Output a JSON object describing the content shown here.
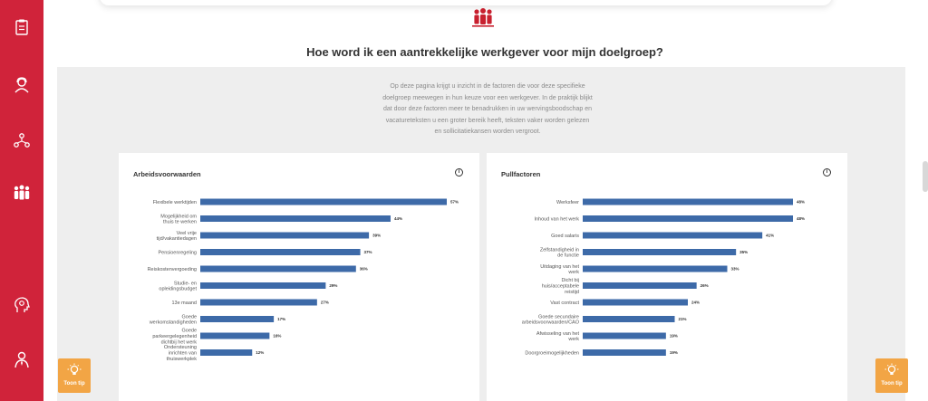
{
  "page": {
    "title": "Hoe word ik een aantrekkelijke werkgever voor mijn doelgroep?",
    "intro_lines": [
      "Op deze pagina krijgt u inzicht in de factoren die voor deze specifieke",
      "doelgroep meewegen in hun keuze voor een werkgever. In de praktijk blijkt",
      "dat door deze factoren meer te benadrukken in uw wervingsboodschap en",
      "vacatureteksten u een groter bereik heeft, teksten vaker worden gelezen",
      "en sollicitatiekansen worden vergroot."
    ]
  },
  "tip": {
    "label": "Toon tip"
  },
  "info_glyph": "i",
  "chart_data": [
    {
      "type": "bar",
      "orientation": "horizontal",
      "title": "Arbeidsvoorwaarden",
      "categories": [
        [
          "Flexibele werktijden"
        ],
        [
          "Mogelijkheid om",
          "thuis te werken"
        ],
        [
          "Veel vrije",
          "tijd/vakantiedagen"
        ],
        [
          "Pensioenregeling"
        ],
        [
          "Reiskostenvergoeding"
        ],
        [
          "Studie- en",
          "opleidingsbudget"
        ],
        [
          "13e maand"
        ],
        [
          "Goede",
          "werkomstandigheden"
        ],
        [
          "Goede",
          "parkeergelegenheid",
          "dichtbij het werk"
        ],
        [
          "Ondersteuning",
          "inrichten van",
          "thuiswerkplek"
        ]
      ],
      "values": [
        57,
        44,
        39,
        37,
        36,
        29,
        27,
        17,
        16,
        12
      ],
      "value_labels": [
        "57%",
        "44%",
        "39%",
        "37%",
        "36%",
        "29%",
        "27%",
        "17%",
        "16%",
        "12%"
      ],
      "xlim": [
        0,
        57
      ]
    },
    {
      "type": "bar",
      "orientation": "horizontal",
      "title": "Pullfactoren",
      "categories": [
        [
          "Werksfeer"
        ],
        [
          "Inhoud van het werk"
        ],
        [
          "Goed salaris"
        ],
        [
          "Zelfstandigheid in",
          "de functie"
        ],
        [
          "Uitdaging van het",
          "werk"
        ],
        [
          "Dicht bij",
          "huis/acceptabele",
          "reistijd"
        ],
        [
          "Vast contract"
        ],
        [
          "Goede secundaire",
          "arbeidsvoorwaarden/CAO"
        ],
        [
          "Afwisseling van het",
          "werk"
        ],
        [
          "Doorgroeimogelijkheden"
        ]
      ],
      "values": [
        48,
        48,
        41,
        35,
        33,
        26,
        24,
        21,
        19,
        19
      ],
      "value_labels": [
        "48%",
        "48%",
        "41%",
        "35%",
        "33%",
        "26%",
        "24%",
        "21%",
        "19%",
        "19%"
      ],
      "xlim": [
        0,
        48
      ]
    }
  ],
  "colors": {
    "sidebar": "#d0233a",
    "bar": "#3d6aa8",
    "tip_button": "#f2a545",
    "accent": "#c8202f"
  },
  "sidebar": {
    "items": [
      {
        "icon": "clipboard-icon"
      },
      {
        "icon": "person-headset-icon"
      },
      {
        "icon": "people-network-icon"
      },
      {
        "icon": "group-icon",
        "active": true
      },
      {
        "icon": "head-gears-icon"
      },
      {
        "icon": "person-tie-icon"
      }
    ]
  }
}
